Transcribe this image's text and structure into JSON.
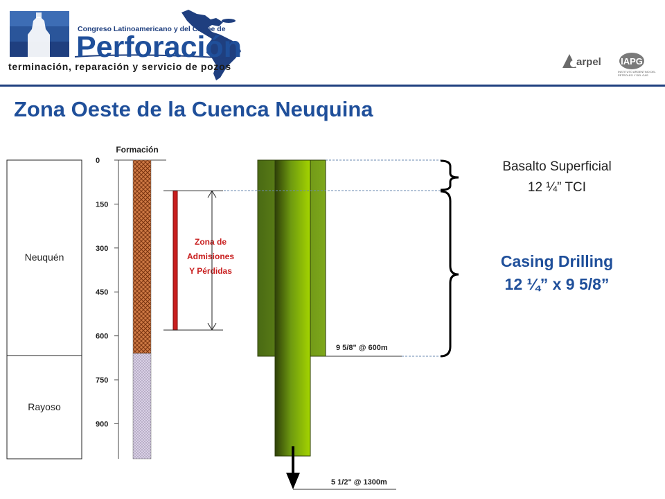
{
  "header": {
    "logo_line1": "Congreso Latinoamericano y del Caribe de",
    "logo_line2": "Perforación",
    "logo_subtitle": "terminación, reparación y servicio de pozos",
    "partner1": "arpel",
    "partner2": "IAPG",
    "partner2_sub": "INSTITUTO ARGENTINO DEL PETROLEO Y DEL GAS"
  },
  "title": "Zona Oeste de la Cuenca Neuquina",
  "formations": {
    "header": "Formación",
    "units": [
      {
        "name": "Neuquén",
        "top_m": 0,
        "base_m": 660,
        "pattern": "brown-crosshatch"
      },
      {
        "name": "Rayoso",
        "top_m": 660,
        "base_m": 1020,
        "pattern": "lilac-dotted"
      }
    ]
  },
  "depth_axis": {
    "ticks": [
      "0",
      "150",
      "300",
      "450",
      "600",
      "750",
      "900"
    ],
    "max_m": 1020
  },
  "loss_zone": {
    "line1": "Zona de",
    "line2": "Admisiones",
    "line3": "Y Pérdidas",
    "top_m": 100,
    "base_m": 580,
    "color": "#c81e1e"
  },
  "casings": {
    "intermediate_label": "9 5/8\" @ 600m",
    "production_label": "5 1/2\" @ 1300m"
  },
  "sections": {
    "basalt_line1": "Basalto Superficial",
    "basalt_line2": "12 ¼” TCI",
    "drilling_line1": "Casing Drilling",
    "drilling_line2": "12 ¼” x 9 5/8”"
  },
  "colors": {
    "title": "#1f4f9a",
    "casing_dark": "#3f5f10",
    "casing_light": "#9acd00",
    "loss_zone": "#c81e1e"
  }
}
